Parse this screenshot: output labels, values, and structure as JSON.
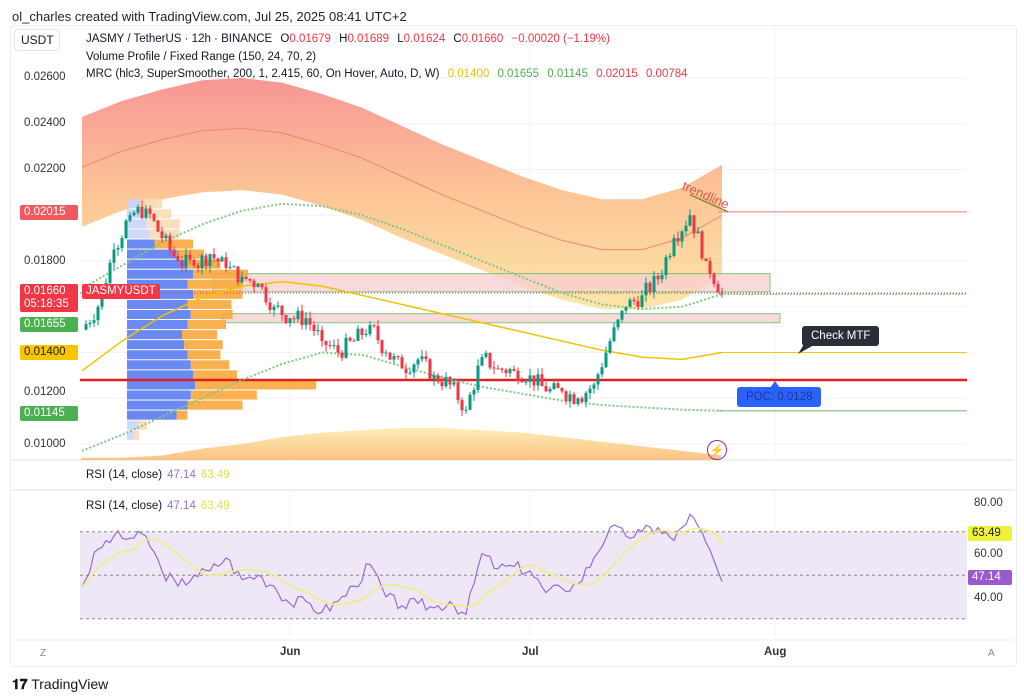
{
  "credit": "ol_charles created with TradingView.com, Jul 25, 2025 08:41 UTC+2",
  "currency": "USDT",
  "legend": {
    "symbol": "JASMY / TetherUS · 12h · BINANCE",
    "o_label": "O",
    "o": "0.01679",
    "h_label": "H",
    "h": "0.01689",
    "l_label": "L",
    "l": "0.01624",
    "c_label": "C",
    "c": "0.01660",
    "change": "−0.00020 (−1.19%)",
    "vp": "Volume Profile / Fixed Range (150, 24, 70, 2)",
    "mrc": "MRC (hlc3, SuperSmoother, 200, 1, 2.415, 60, On Hover, Auto, D, W)",
    "mrc_values": [
      "0.01400",
      "0.01655",
      "0.01145",
      "0.02015",
      "0.00784"
    ],
    "mrc_colors": [
      "#e6c000",
      "#4caf50",
      "#4caf50",
      "#f23645",
      "#f23645"
    ]
  },
  "price_axis": [
    "0.02600",
    "0.02400",
    "0.02200",
    "0.01800",
    "0.01200",
    "0.01000"
  ],
  "tags": {
    "upper": "0.02015",
    "last": "0.01660",
    "countdown": "05:18:35",
    "symbol_tag": "JASMYUSDT",
    "upper_inner": "0.01655",
    "mean": "0.01400",
    "lower_inner": "0.01145"
  },
  "annotations": {
    "trendline": "trendline",
    "check_mtf": "Check MTF",
    "poc": "POC: 0.0128"
  },
  "rsi": {
    "title": "RSI (14, close)",
    "value": "47.14",
    "ma_value": "63.49",
    "axis": [
      "80.00",
      "60.00",
      "40.00"
    ],
    "colors": {
      "rsi": "#9b6bd1",
      "ma": "#f0ef7a"
    }
  },
  "time_axis": [
    "Jun",
    "Jul",
    "Aug"
  ],
  "corner_left": "Z",
  "corner_right": "A",
  "footer": "TradingView",
  "colors": {
    "up": "#089981",
    "down": "#f23645",
    "poc": "#e02020",
    "vp_up": "#5b7cf2",
    "vp_down": "#f7a93b"
  },
  "chart_data": {
    "type": "candlestick",
    "symbol": "JASMYUSDT",
    "interval": "12h",
    "ylim": [
      0.0098,
      0.0268
    ],
    "closes": [
      [
        "2025-05-06",
        0.015
      ],
      [
        "2025-05-08",
        0.016
      ],
      [
        "2025-05-10",
        0.0185
      ],
      [
        "2025-05-12",
        0.02
      ],
      [
        "2025-05-14",
        0.0203
      ],
      [
        "2025-05-16",
        0.019
      ],
      [
        "2025-05-18",
        0.018
      ],
      [
        "2025-05-20",
        0.0178
      ],
      [
        "2025-05-22",
        0.0183
      ],
      [
        "2025-05-24",
        0.0177
      ],
      [
        "2025-05-26",
        0.0173
      ],
      [
        "2025-05-28",
        0.017
      ],
      [
        "2025-05-30",
        0.016
      ],
      [
        "2025-06-01",
        0.0155
      ],
      [
        "2025-06-03",
        0.0155
      ],
      [
        "2025-06-05",
        0.0145
      ],
      [
        "2025-06-07",
        0.014
      ],
      [
        "2025-06-09",
        0.0145
      ],
      [
        "2025-06-11",
        0.0152
      ],
      [
        "2025-06-13",
        0.014
      ],
      [
        "2025-06-15",
        0.0133
      ],
      [
        "2025-06-17",
        0.0137
      ],
      [
        "2025-06-19",
        0.013
      ],
      [
        "2025-06-21",
        0.0126
      ],
      [
        "2025-06-23",
        0.0115
      ],
      [
        "2025-06-25",
        0.0138
      ],
      [
        "2025-06-27",
        0.0133
      ],
      [
        "2025-06-29",
        0.0132
      ],
      [
        "2025-07-01",
        0.013
      ],
      [
        "2025-07-03",
        0.0123
      ],
      [
        "2025-07-05",
        0.0123
      ],
      [
        "2025-07-07",
        0.012
      ],
      [
        "2025-07-09",
        0.0126
      ],
      [
        "2025-07-11",
        0.0145
      ],
      [
        "2025-07-13",
        0.016
      ],
      [
        "2025-07-15",
        0.0165
      ],
      [
        "2025-07-17",
        0.0172
      ],
      [
        "2025-07-19",
        0.019
      ],
      [
        "2025-07-21",
        0.02
      ],
      [
        "2025-07-23",
        0.018
      ],
      [
        "2025-07-25",
        0.0166
      ]
    ],
    "mrc_dates": [
      "2025-05-06",
      "2025-05-11",
      "2025-05-16",
      "2025-05-21",
      "2025-05-26",
      "2025-05-31",
      "2025-06-05",
      "2025-06-10",
      "2025-06-15",
      "2025-06-20",
      "2025-06-25",
      "2025-06-30",
      "2025-07-05",
      "2025-07-10",
      "2025-07-15",
      "2025-07-20",
      "2025-07-25"
    ],
    "mrc_upper_outer": [
      0.0243,
      0.025,
      0.0255,
      0.0259,
      0.026,
      0.0258,
      0.0253,
      0.0247,
      0.0239,
      0.0231,
      0.0224,
      0.0217,
      0.0211,
      0.0207,
      0.0207,
      0.0212,
      0.0222
    ],
    "mrc_upper_band_inner": [
      0.0195,
      0.0202,
      0.0207,
      0.021,
      0.0211,
      0.0209,
      0.0204,
      0.0198,
      0.019,
      0.0183,
      0.0176,
      0.0169,
      0.0163,
      0.0159,
      0.0159,
      0.0163,
      0.0174
    ],
    "mrc_upper_inner": [
      0.0168,
      0.0178,
      0.0188,
      0.0196,
      0.0202,
      0.0205,
      0.0204,
      0.02,
      0.0194,
      0.0187,
      0.018,
      0.0173,
      0.0166,
      0.0161,
      0.0159,
      0.016,
      0.01655
    ],
    "mrc_mean": [
      0.0132,
      0.0145,
      0.0156,
      0.0164,
      0.0169,
      0.0171,
      0.0169,
      0.0165,
      0.0161,
      0.0157,
      0.0153,
      0.0149,
      0.0145,
      0.0141,
      0.0138,
      0.0137,
      0.014
    ],
    "mrc_lower_inner": [
      0.0097,
      0.0104,
      0.0112,
      0.012,
      0.0128,
      0.0135,
      0.014,
      0.0139,
      0.0134,
      0.0129,
      0.0125,
      0.0122,
      0.0119,
      0.0117,
      0.0116,
      0.0115,
      0.01145
    ],
    "mrc_lower_band_top": [
      0.0094,
      0.0094,
      0.0095,
      0.0098,
      0.01,
      0.0103,
      0.0105,
      0.0106,
      0.0107,
      0.0107,
      0.0106,
      0.0105,
      0.0103,
      0.0101,
      0.0099,
      0.0097,
      0.0095
    ],
    "levels": {
      "upper": 0.02015,
      "upper_inner": 0.01655,
      "mean": 0.014,
      "poc": 0.0128,
      "lower_inner": 0.01145
    },
    "zones": [
      [
        0.01665,
        0.01745
      ],
      [
        0.0153,
        0.0157
      ]
    ],
    "trendline": [
      [
        "2025-07-21",
        0.0209
      ],
      [
        "2025-07-25",
        0.02015
      ]
    ],
    "volume_profile": {
      "price_top": 0.0207,
      "price_bottom": 0.01014,
      "rows": 24,
      "up": [
        12,
        15,
        18,
        20,
        25,
        45,
        55,
        60,
        55,
        60,
        55,
        58,
        55,
        50,
        52,
        55,
        58,
        60,
        62,
        58,
        55,
        45,
        10,
        6
      ],
      "down": [
        20,
        25,
        30,
        28,
        35,
        25,
        30,
        50,
        50,
        45,
        40,
        38,
        35,
        32,
        35,
        30,
        35,
        40,
        110,
        60,
        50,
        10,
        8,
        5
      ],
      "value_area_rows": [
        4,
        21
      ]
    },
    "rsi": {
      "ylim": [
        20,
        85
      ],
      "bands": [
        30,
        50,
        70
      ],
      "values": [
        [
          "2025-05-06",
          45
        ],
        [
          "2025-05-08",
          62
        ],
        [
          "2025-05-10",
          68
        ],
        [
          "2025-05-12",
          67
        ],
        [
          "2025-05-14",
          68
        ],
        [
          "2025-05-16",
          52
        ],
        [
          "2025-05-18",
          45
        ],
        [
          "2025-05-20",
          50
        ],
        [
          "2025-05-22",
          52
        ],
        [
          "2025-05-24",
          58
        ],
        [
          "2025-05-26",
          48
        ],
        [
          "2025-05-28",
          50
        ],
        [
          "2025-05-30",
          45
        ],
        [
          "2025-06-01",
          37
        ],
        [
          "2025-06-03",
          38
        ],
        [
          "2025-06-05",
          33
        ],
        [
          "2025-06-07",
          38
        ],
        [
          "2025-06-09",
          45
        ],
        [
          "2025-06-11",
          55
        ],
        [
          "2025-06-13",
          40
        ],
        [
          "2025-06-15",
          36
        ],
        [
          "2025-06-17",
          37
        ],
        [
          "2025-06-19",
          35
        ],
        [
          "2025-06-21",
          38
        ],
        [
          "2025-06-23",
          32
        ],
        [
          "2025-06-25",
          60
        ],
        [
          "2025-06-27",
          53
        ],
        [
          "2025-06-29",
          54
        ],
        [
          "2025-07-01",
          52
        ],
        [
          "2025-07-03",
          42
        ],
        [
          "2025-07-05",
          44
        ],
        [
          "2025-07-07",
          46
        ],
        [
          "2025-07-09",
          58
        ],
        [
          "2025-07-11",
          72
        ],
        [
          "2025-07-13",
          68
        ],
        [
          "2025-07-15",
          70
        ],
        [
          "2025-07-17",
          72
        ],
        [
          "2025-07-19",
          66
        ],
        [
          "2025-07-21",
          78
        ],
        [
          "2025-07-23",
          65
        ],
        [
          "2025-07-25",
          47.14
        ]
      ]
    }
  }
}
